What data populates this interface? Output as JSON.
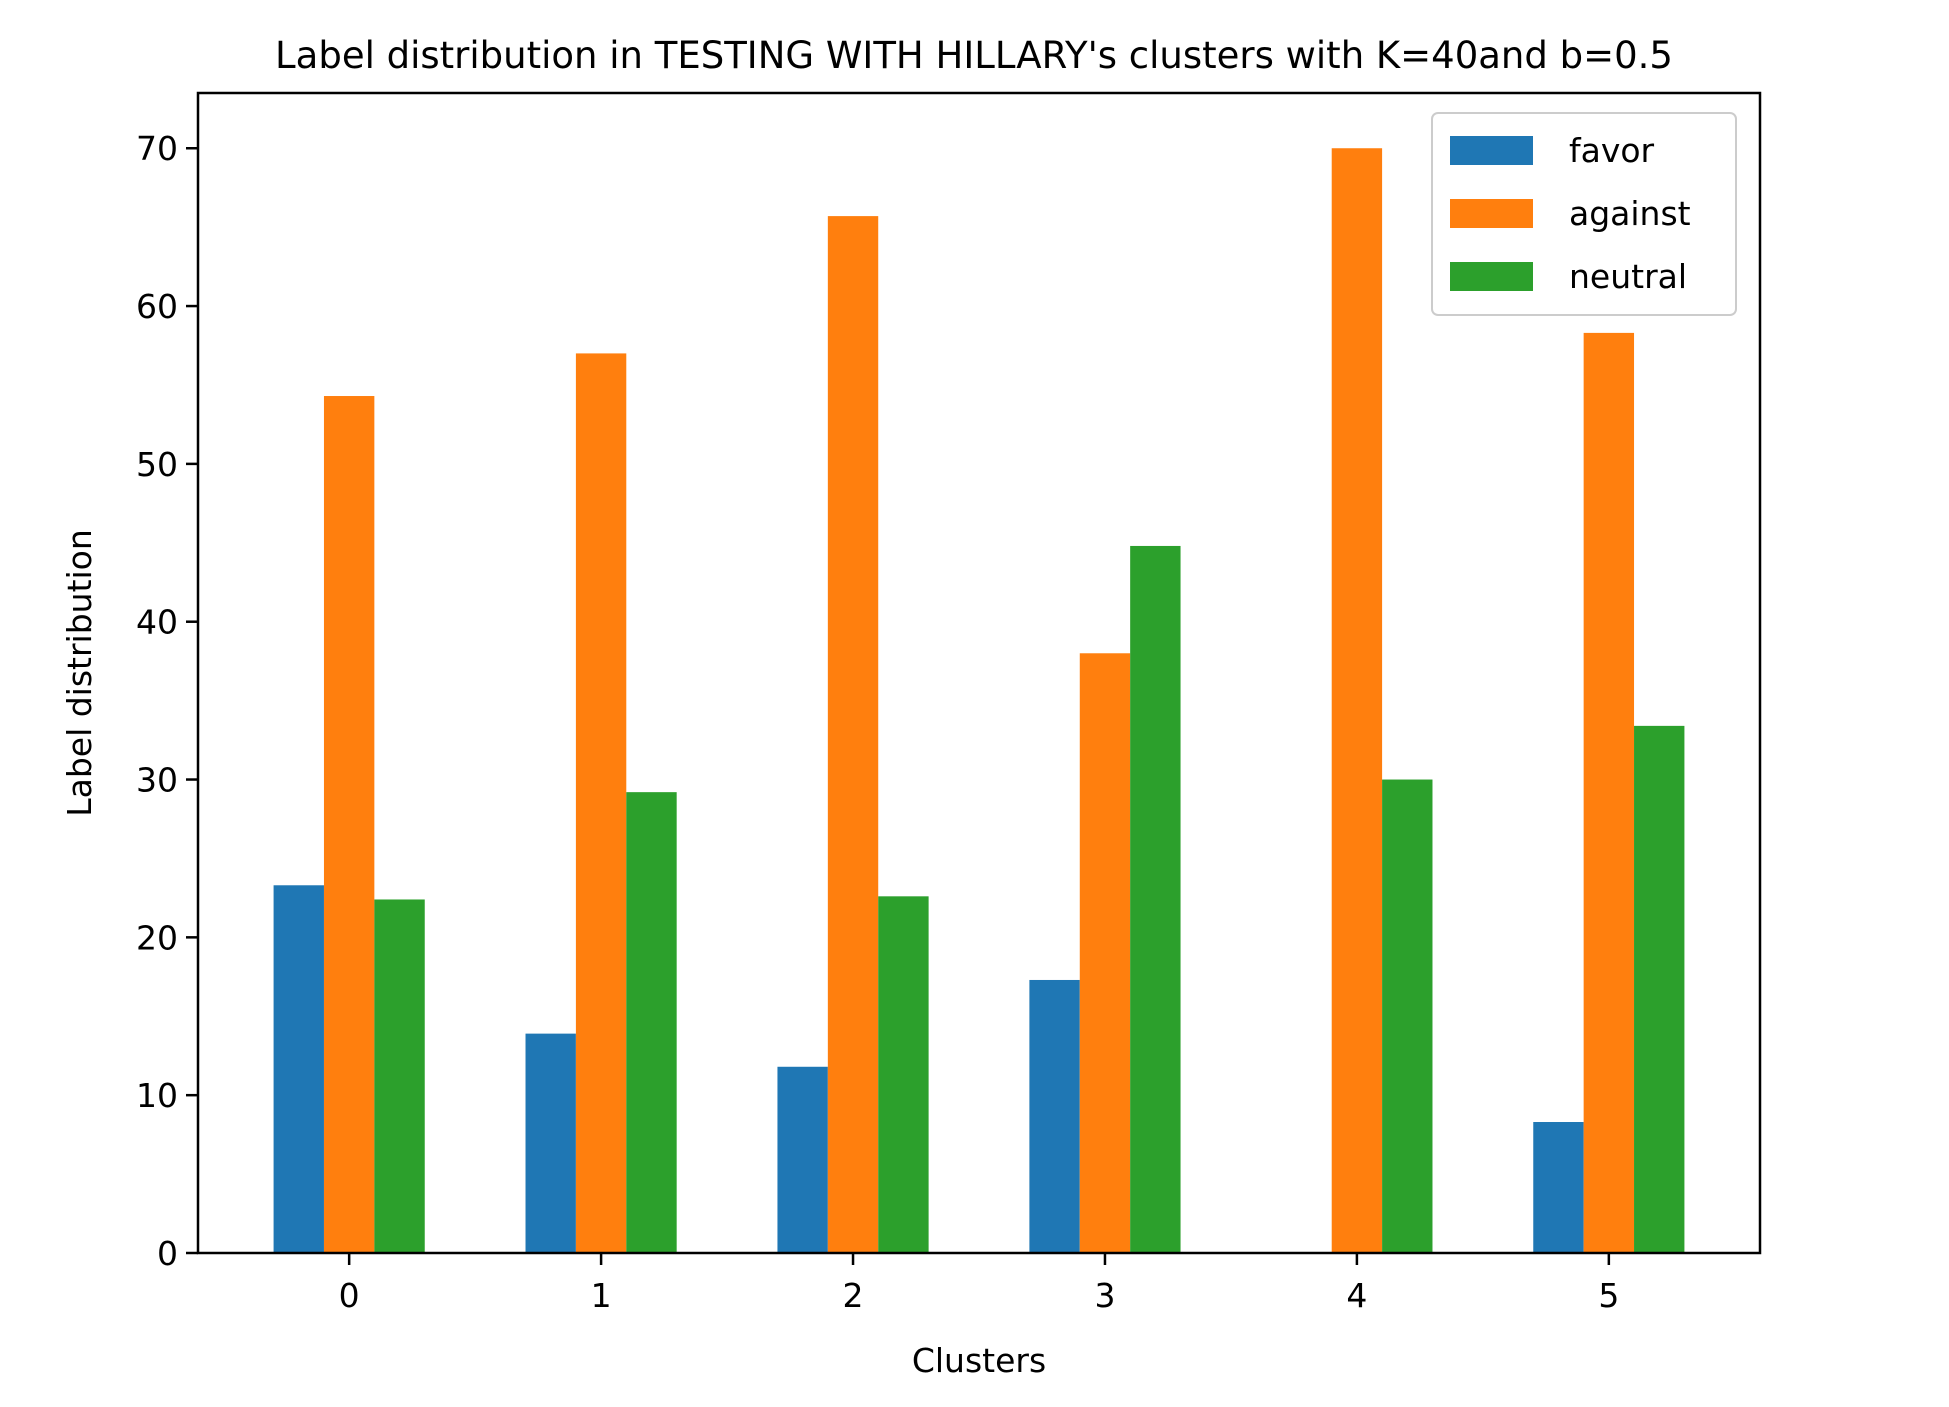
{
  "chart_data": {
    "type": "bar",
    "title": "Label distribution in TESTING WITH HILLARY's clusters with K=40and b=0.5",
    "xlabel": "Clusters",
    "ylabel": "Label distribution",
    "categories": [
      "0",
      "1",
      "2",
      "3",
      "4",
      "5"
    ],
    "series": [
      {
        "name": "favor",
        "color": "#1f77b4",
        "values": [
          23.3,
          13.9,
          11.8,
          17.3,
          0,
          8.3
        ]
      },
      {
        "name": "against",
        "color": "#ff7f0e",
        "values": [
          54.3,
          57.0,
          65.7,
          38.0,
          70.0,
          58.3
        ]
      },
      {
        "name": "neutral",
        "color": "#2ca02c",
        "values": [
          22.4,
          29.2,
          22.6,
          44.8,
          30.0,
          33.4
        ]
      }
    ],
    "xlim": [
      -0.6,
      5.6
    ],
    "ylim": [
      0,
      73.5
    ],
    "yticks": [
      "0",
      "10",
      "20",
      "30",
      "40",
      "50",
      "60",
      "70"
    ],
    "grid": false,
    "legend_position": "top-right"
  }
}
